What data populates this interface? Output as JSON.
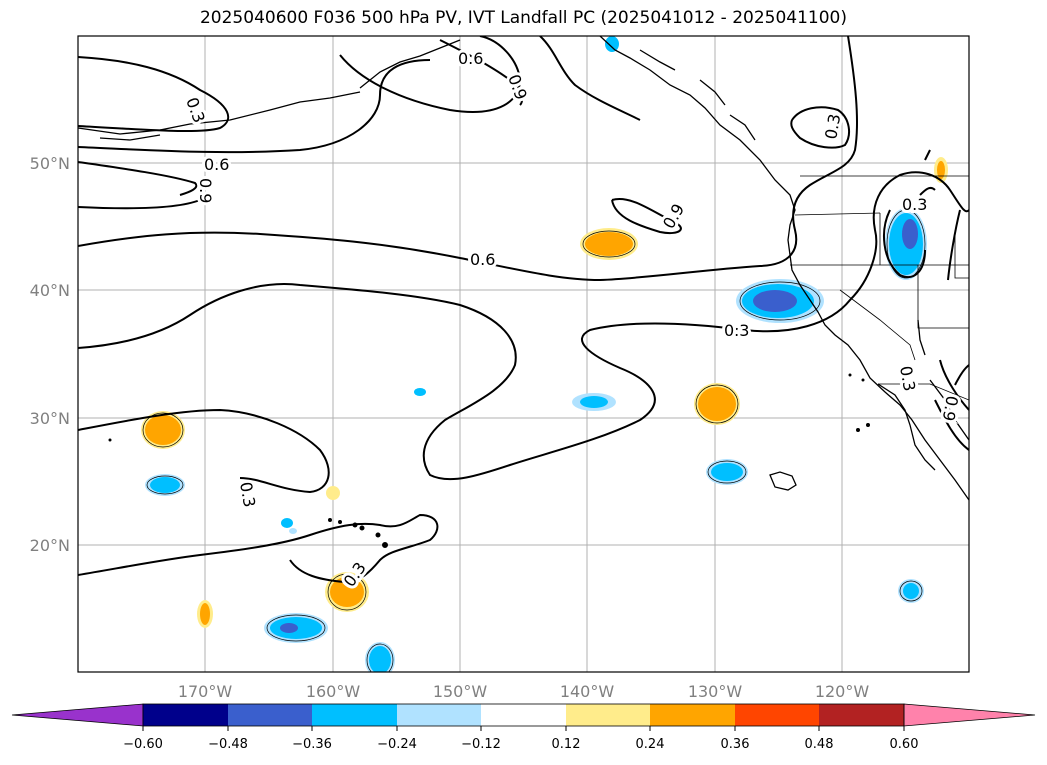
{
  "title": "2025040600 F036 500 hPa PV, IVT Landfall PC (2025041012 - 2025041100)",
  "map": {
    "lon_range": [
      -180,
      -110
    ],
    "lat_range": [
      10,
      60
    ],
    "lat_labels": [
      "20°N",
      "30°N",
      "40°N",
      "50°N"
    ],
    "lon_labels": [
      "170°W",
      "160°W",
      "150°W",
      "140°W",
      "130°W",
      "120°W"
    ],
    "contour_labels": [
      "0.3",
      "0.6",
      "0.9",
      "0.6",
      "0.9",
      "0.6",
      "0.9",
      "0.3",
      "0.3",
      "0.3",
      "0.3",
      "0.3",
      "0.3",
      "0.9"
    ],
    "colors": {
      "neg_060": "#9932cc",
      "neg_048": "#00008b",
      "neg_036": "#3a5fcd",
      "neg_024": "#00bfff",
      "neg_012": "#b0e2ff",
      "zero": "#ffffff",
      "pos_012": "#ffec8b",
      "pos_024": "#ffa500",
      "pos_036": "#ff4500",
      "pos_048": "#b22222",
      "pos_060": "#ff82ab"
    }
  },
  "colorbar": {
    "ticks": [
      "−0.60",
      "−0.48",
      "−0.36",
      "−0.24",
      "−0.12",
      "0.12",
      "0.24",
      "0.36",
      "0.48",
      "0.60"
    ],
    "colors": [
      "#9932cc",
      "#00008b",
      "#3a5fcd",
      "#00bfff",
      "#b0e2ff",
      "#ffffff",
      "#ffec8b",
      "#ffa500",
      "#ff4500",
      "#b22222",
      "#ff82ab"
    ]
  }
}
